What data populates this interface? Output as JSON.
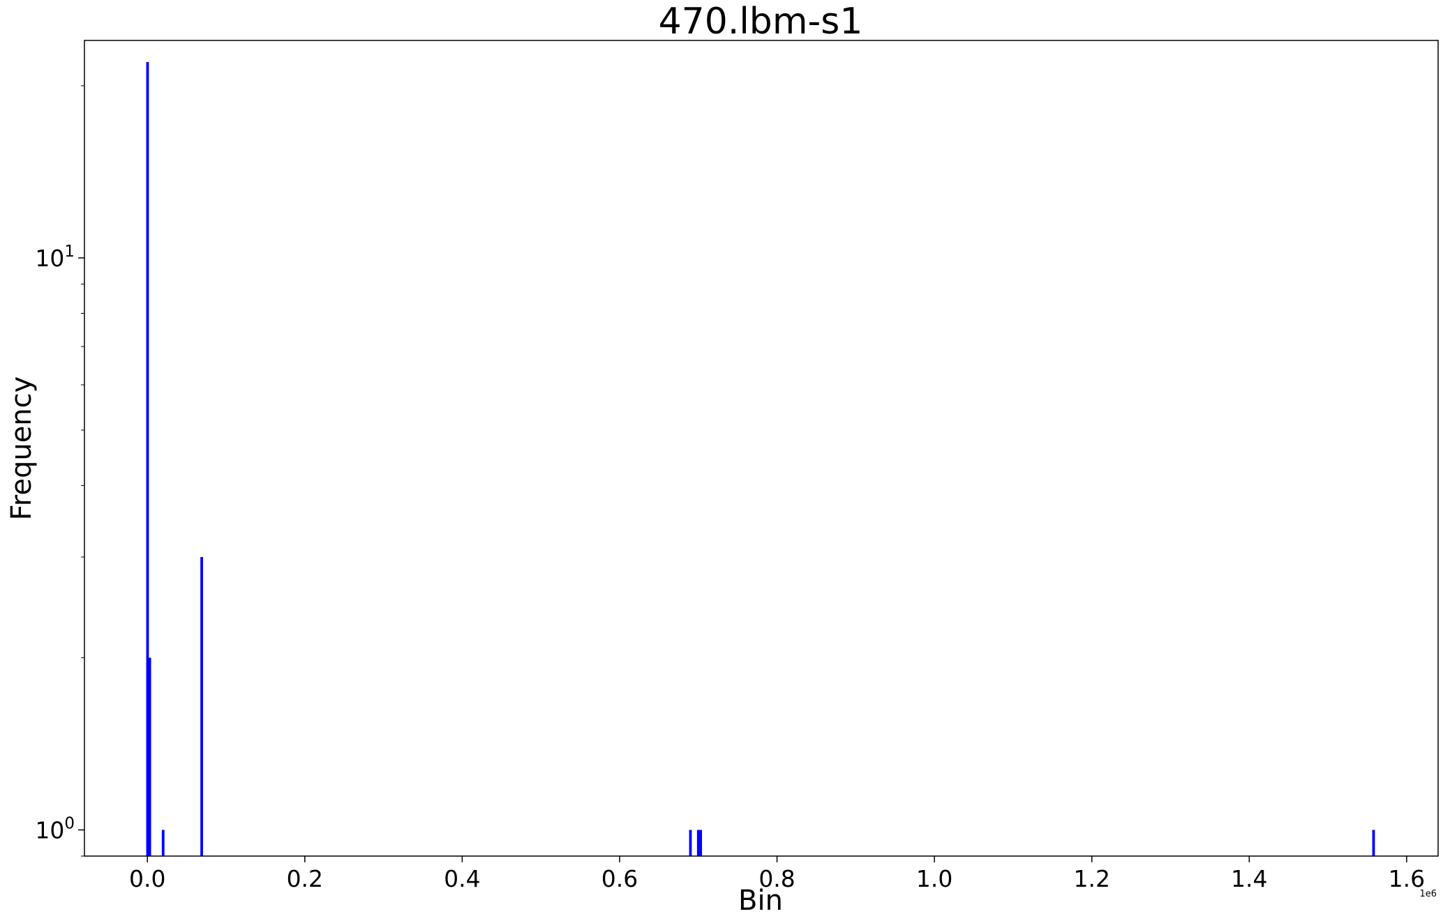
{
  "chart_data": {
    "type": "bar",
    "title": "470.lbm-s1",
    "xlabel": "Bin",
    "ylabel": "Frequency",
    "x_offset_label": "1e6",
    "y_scale": "log",
    "xlim": [
      -0.08,
      1.64
    ],
    "ylim": [
      0.9,
      24
    ],
    "x_ticks": [
      {
        "value": 0.0,
        "label": "0.0"
      },
      {
        "value": 0.2,
        "label": "0.2"
      },
      {
        "value": 0.4,
        "label": "0.4"
      },
      {
        "value": 0.6,
        "label": "0.6"
      },
      {
        "value": 0.8,
        "label": "0.8"
      },
      {
        "value": 1.0,
        "label": "1.0"
      },
      {
        "value": 1.2,
        "label": "1.2"
      },
      {
        "value": 1.4,
        "label": "1.4"
      },
      {
        "value": 1.6,
        "label": "1.6"
      }
    ],
    "y_ticks": [
      {
        "value": 1,
        "base": "10",
        "exp": "0"
      },
      {
        "value": 10,
        "base": "10",
        "exp": "1"
      }
    ],
    "bars": [
      {
        "x": 0.0002,
        "height": 22
      },
      {
        "x": 0.003,
        "height": 2
      },
      {
        "x": 0.02,
        "height": 1
      },
      {
        "x": 0.069,
        "height": 3
      },
      {
        "x": 0.69,
        "height": 1
      },
      {
        "x": 0.7,
        "height": 1
      },
      {
        "x": 0.703,
        "height": 1
      },
      {
        "x": 1.558,
        "height": 1
      }
    ],
    "bar_color": "#0000ff",
    "grid": false,
    "legend": "none"
  }
}
